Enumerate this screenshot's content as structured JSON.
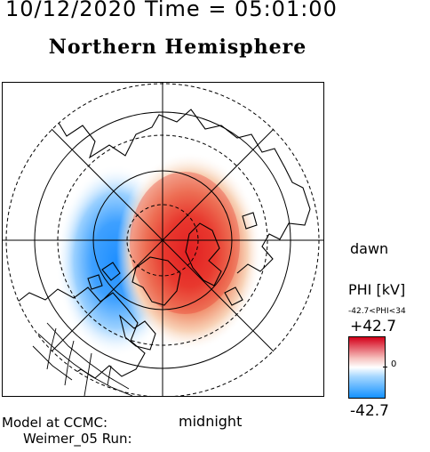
{
  "header": {
    "date_time": "10/12/2020 Time = 05:01:00",
    "hemisphere": "Northern Hemisphere"
  },
  "map": {
    "orientation_labels": {
      "right": "dawn",
      "bottom": "midnight"
    },
    "potential_pattern": {
      "dawn_cell_sign": "positive",
      "dusk_cell_sign": "negative",
      "positive_color": "#e0141e",
      "negative_color": "#1f8fff"
    }
  },
  "colorbar": {
    "title": "PHI [kV]",
    "range_text": "-42.7<PHI<34",
    "max_label": "+42.7",
    "min_label": "-42.7",
    "zero_label": "0",
    "max_color": "#d4001a",
    "mid_color": "#ffffff",
    "min_color": "#1592ff"
  },
  "footer": {
    "model_line1": "Model at CCMC:",
    "model_line2": "Weimer_05 Run:"
  }
}
